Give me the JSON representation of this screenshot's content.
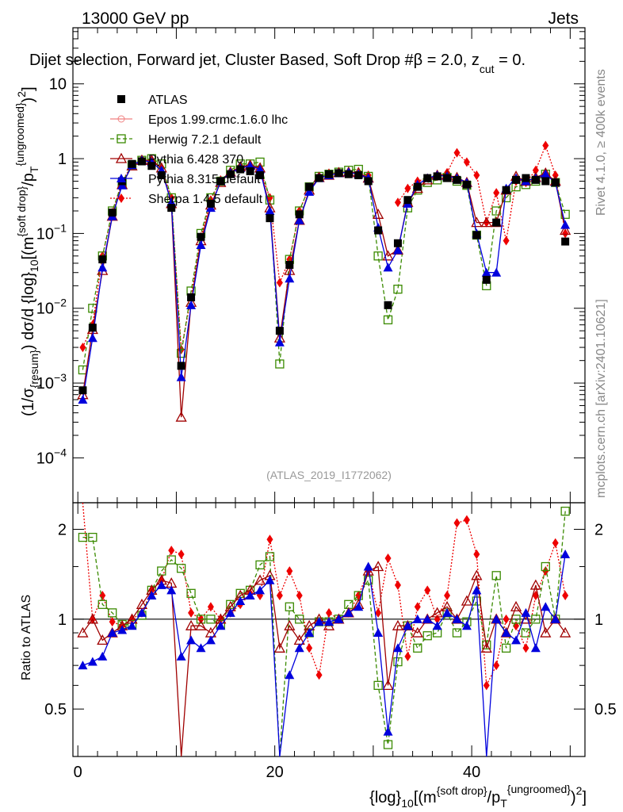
{
  "header": {
    "left": "13000 GeV pp",
    "right": "Jets",
    "title": "Dijet selection, Forward jet, Cluster Based, Soft Drop #beta = 2.0, z_cut = 0.",
    "title_main": "Dijet selection, Forward jet, Cluster Based, Soft Drop #",
    "title_beta": "β",
    "title_eq": " = 2.0, z",
    "title_cut": "cut",
    "title_end": " = 0."
  },
  "side_labels": {
    "rivet": "Rivet 4.1.0, ≥ 400k events",
    "mcplots": "mcplots.cern.ch [arXiv:2401.10621]"
  },
  "watermark": "(ATLAS_2019_I1772062)",
  "main_plot": {
    "ylabel": "(1/σ{resum}) dσ/d {log}10[(m{soft drop}/pT{ungroomed})2]",
    "ylabel_pre": "(1/σ",
    "ylabel_sub1": "{resum}",
    "ylabel_mid": ") dσ/d {log}",
    "ylabel_sub2": "10",
    "ylabel_m": "[(m",
    "ylabel_sup1": "{soft drop}",
    "ylabel_pt": "/p",
    "ylabel_subT": "T",
    "ylabel_sup2": "{ungroomed}",
    "ylabel_close": ")",
    "ylabel_sup3": "2",
    "ylabel_end": "]",
    "yticks": [
      "10",
      "1",
      "10−1",
      "10−2",
      "10−3",
      "10−4"
    ],
    "ytick_base": "10",
    "ytick_exps": [
      "",
      "",
      "−1",
      "−2",
      "−3",
      "−4"
    ]
  },
  "ratio_plot": {
    "ylabel": "Ratio to ATLAS",
    "yticks": [
      "2",
      "1",
      "0.5"
    ]
  },
  "xaxis": {
    "label_pre": "{log}",
    "label_sub": "10",
    "label_m": "[(m",
    "label_sup1": "{soft drop}",
    "label_pt": "/p",
    "label_subT": "T",
    "label_sup2": "{ungroomed}",
    "label_close": ")",
    "label_sup3": "2",
    "label_end": "]",
    "ticks": [
      "0",
      "20",
      "40"
    ]
  },
  "legend": [
    {
      "name": "ATLAS",
      "color": "#000000",
      "marker": "square-filled",
      "dash": ""
    },
    {
      "name": "Epos 1.99.crmc.1.6.0 lhc",
      "color": "#f08080",
      "marker": "plus-circle",
      "dash": ""
    },
    {
      "name": "Herwig 7.2.1 default",
      "color": "#3a8a00",
      "marker": "square-open",
      "dash": "5,3"
    },
    {
      "name": "Pythia 6.428 370",
      "color": "#a00000",
      "marker": "triangle-open",
      "dash": ""
    },
    {
      "name": "Pythia 8.315 default",
      "color": "#0000dd",
      "marker": "triangle-filled",
      "dash": ""
    },
    {
      "name": "Sherpa 1.4.5 default",
      "color": "#ee0000",
      "marker": "diamond-filled",
      "dash": "2,2"
    }
  ],
  "chart_data": {
    "type": "line",
    "xlim": [
      -0.5,
      51.5
    ],
    "main_ylim_log10": [
      -4.6,
      1.75
    ],
    "ratio_ylim_log10": [
      -0.46,
      0.39
    ],
    "x": [
      0.5,
      1.5,
      2.5,
      3.5,
      4.5,
      5.5,
      6.5,
      7.5,
      8.5,
      9.5,
      10.5,
      11.5,
      12.5,
      13.5,
      14.5,
      15.5,
      16.5,
      17.5,
      18.5,
      19.5,
      20.5,
      21.5,
      22.5,
      23.5,
      24.5,
      25.5,
      26.5,
      27.5,
      28.5,
      29.5,
      30.5,
      31.5,
      32.5,
      33.5,
      34.5,
      35.5,
      36.5,
      37.5,
      38.5,
      39.5,
      40.5,
      41.5,
      42.5,
      43.5,
      44.5,
      45.5,
      46.5,
      47.5,
      48.5,
      49.5
    ],
    "series": [
      {
        "name": "ATLAS",
        "values": [
          0.0008,
          0.0055,
          0.045,
          0.19,
          0.5,
          0.85,
          0.92,
          0.8,
          0.6,
          0.22,
          0.0017,
          0.014,
          0.09,
          0.25,
          0.5,
          0.62,
          0.72,
          0.68,
          0.6,
          0.16,
          0.005,
          0.038,
          0.18,
          0.42,
          0.55,
          0.62,
          0.64,
          0.62,
          0.6,
          0.5,
          0.11,
          0.011,
          0.074,
          0.28,
          0.42,
          0.55,
          0.58,
          0.55,
          0.52,
          0.45,
          0.095,
          0.024,
          0.14,
          0.38,
          0.52,
          0.55,
          0.52,
          0.5,
          0.48,
          0.078
        ]
      },
      {
        "name": "Epos 1.99.crmc.1.6.0 lhc",
        "values": [
          null,
          null,
          null,
          null,
          null,
          null,
          null,
          null,
          null,
          null,
          null,
          null,
          null,
          null,
          null,
          null,
          null,
          null,
          null,
          null,
          null,
          null,
          null,
          null,
          null,
          null,
          null,
          null,
          null,
          null,
          null,
          null,
          null,
          null,
          null,
          null,
          null,
          null,
          null,
          null,
          null,
          null,
          null,
          null,
          null,
          null,
          null,
          null,
          null,
          null
        ]
      },
      {
        "name": "Herwig 7.2.1 default",
        "values": [
          0.0015,
          0.01,
          0.05,
          0.2,
          0.48,
          0.82,
          0.95,
          1.0,
          0.85,
          0.3,
          0.0025,
          0.017,
          0.1,
          0.3,
          0.5,
          0.7,
          0.85,
          0.85,
          0.9,
          0.28,
          0.0018,
          0.045,
          0.2,
          0.42,
          0.58,
          0.62,
          0.66,
          0.7,
          0.72,
          0.58,
          0.05,
          0.007,
          0.018,
          0.22,
          0.38,
          0.48,
          0.52,
          0.56,
          0.5,
          0.44,
          0.095,
          0.02,
          0.2,
          0.3,
          0.42,
          0.45,
          0.5,
          0.62,
          0.48,
          0.18
        ]
      },
      {
        "name": "Pythia 6.428 370",
        "values": [
          0.0007,
          0.0052,
          0.032,
          0.17,
          0.45,
          0.8,
          0.95,
          0.95,
          0.75,
          0.25,
          0.00035,
          0.012,
          0.08,
          0.24,
          0.48,
          0.66,
          0.78,
          0.82,
          0.75,
          0.22,
          0.004,
          0.032,
          0.15,
          0.38,
          0.56,
          0.6,
          0.65,
          0.66,
          0.65,
          0.55,
          0.18,
          0.05,
          0.06,
          0.26,
          0.4,
          0.52,
          0.6,
          0.6,
          0.56,
          0.48,
          0.14,
          0.14,
          0.14,
          0.38,
          0.58,
          0.5,
          0.56,
          0.64,
          0.5,
          0.11
        ]
      },
      {
        "name": "Pythia 8.315 default",
        "values": [
          0.0006,
          0.004,
          0.035,
          0.17,
          0.44,
          0.82,
          0.95,
          0.9,
          0.7,
          0.26,
          0.0012,
          0.011,
          0.07,
          0.22,
          0.5,
          0.65,
          0.75,
          0.8,
          0.72,
          0.2,
          0.0035,
          0.025,
          0.15,
          0.36,
          0.55,
          0.6,
          0.64,
          0.66,
          0.62,
          0.55,
          0.12,
          0.035,
          0.06,
          0.25,
          0.45,
          0.55,
          0.6,
          0.58,
          0.55,
          0.48,
          0.1,
          0.03,
          0.03,
          0.4,
          0.55,
          0.5,
          0.55,
          0.62,
          0.48,
          0.13
        ]
      },
      {
        "name": "Sherpa 1.4.5 default",
        "values": [
          0.003,
          0.006,
          0.05,
          0.19,
          0.5,
          0.82,
          0.98,
          0.92,
          0.75,
          0.3,
          0.0028,
          0.014,
          0.09,
          0.28,
          0.52,
          0.65,
          0.78,
          0.82,
          0.72,
          0.3,
          0.022,
          0.045,
          0.2,
          0.42,
          0.58,
          0.64,
          0.65,
          0.66,
          0.62,
          0.6,
          null,
          null,
          0.26,
          0.4,
          0.5,
          0.55,
          0.58,
          0.65,
          1.2,
          0.9,
          0.6,
          0.14,
          0.35,
          0.08,
          0.5,
          0.48,
          0.7,
          1.5,
          0.6,
          0.1
        ]
      }
    ],
    "ratio_series": [
      {
        "name": "Herwig 7.2.1 default",
        "values": [
          1.88,
          1.88,
          1.12,
          1.05,
          0.96,
          0.96,
          1.03,
          1.25,
          1.45,
          1.58,
          1.48,
          1.22,
          1.0,
          1.0,
          0.96,
          1.12,
          1.22,
          1.25,
          1.52,
          1.62,
          0.3,
          1.1,
          1.0,
          0.9,
          0.98,
          0.98,
          1.0,
          1.12,
          1.2,
          1.35,
          0.6,
          0.38,
          0.72,
          0.95,
          0.8,
          0.88,
          0.9,
          1.05,
          0.9,
          0.98,
          1.15,
          0.82,
          1.4,
          0.8,
          1.0,
          0.9,
          1.0,
          1.5,
          1.0,
          2.3
        ]
      },
      {
        "name": "Pythia 6.428 370",
        "values": [
          0.9,
          1.0,
          0.85,
          0.9,
          0.95,
          1.0,
          1.12,
          1.25,
          1.35,
          1.32,
          0.3,
          0.95,
          0.95,
          0.9,
          1.0,
          1.1,
          1.2,
          1.25,
          1.35,
          1.4,
          0.8,
          0.95,
          0.85,
          0.95,
          1.0,
          0.95,
          1.0,
          1.05,
          1.12,
          1.45,
          1.5,
          0.6,
          0.95,
          0.95,
          0.9,
          1.0,
          1.05,
          1.1,
          1.0,
          1.15,
          1.4,
          0.8,
          1.0,
          0.9,
          1.1,
          1.0,
          1.3,
          0.9,
          1.0,
          0.9
        ]
      },
      {
        "name": "Pythia 8.315 default",
        "values": [
          0.7,
          0.72,
          0.75,
          0.9,
          0.92,
          0.95,
          1.05,
          1.2,
          1.3,
          1.25,
          0.75,
          0.85,
          0.8,
          0.85,
          0.95,
          1.05,
          1.15,
          1.2,
          1.25,
          1.35,
          0.25,
          0.65,
          0.8,
          0.9,
          0.98,
          0.98,
          1.0,
          1.05,
          1.1,
          1.5,
          0.9,
          0.42,
          0.8,
          0.95,
          1.0,
          1.0,
          0.95,
          1.05,
          1.0,
          0.95,
          1.25,
          0.15,
          1.0,
          0.9,
          0.85,
          1.05,
          0.8,
          1.1,
          1.0,
          1.65
        ]
      },
      {
        "name": "Sherpa 1.4.5 default",
        "values": [
          3.0,
          1.0,
          1.2,
          0.98,
          0.95,
          1.0,
          1.05,
          1.25,
          1.35,
          1.7,
          1.65,
          1.05,
          1.0,
          1.1,
          1.0,
          1.05,
          1.12,
          1.22,
          1.2,
          1.85,
          1.2,
          1.45,
          1.2,
          0.8,
          0.65,
          1.05,
          1.0,
          1.05,
          1.2,
          1.45,
          1.05,
          1.6,
          1.3,
          0.75,
          1.1,
          1.25,
          1.0,
          1.2,
          2.1,
          2.15,
          1.65,
          0.6,
          0.7,
          1.0,
          0.95,
          0.8,
          1.2,
          1.45,
          1.8,
          1.2
        ]
      }
    ]
  }
}
